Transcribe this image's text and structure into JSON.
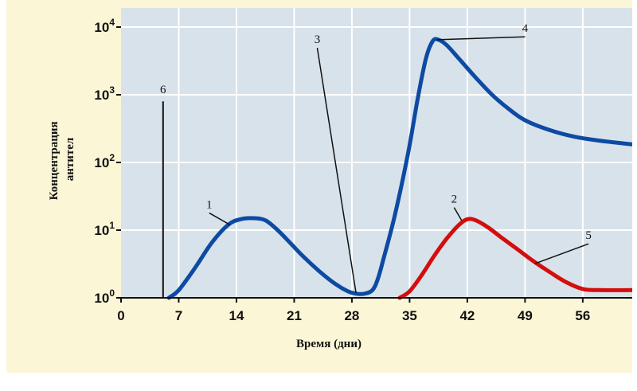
{
  "chart_data": {
    "type": "line",
    "xlabel": "Время (дни)",
    "ylabel": [
      "Концентрация",
      "антител"
    ],
    "xlim": [
      0,
      62
    ],
    "x_ticks": [
      0,
      7,
      14,
      21,
      28,
      35,
      42,
      49,
      56
    ],
    "ylim": [
      1,
      10000
    ],
    "yscale": "log",
    "y_ticks": [
      {
        "base": "10",
        "exp": "0",
        "value": 1
      },
      {
        "base": "10",
        "exp": "1",
        "value": 10
      },
      {
        "base": "10",
        "exp": "2",
        "value": 100
      },
      {
        "base": "10",
        "exp": "3",
        "value": 1000
      },
      {
        "base": "10",
        "exp": "4",
        "value": 10000
      }
    ],
    "grid": true,
    "series": [
      {
        "color": "#0d4aa3",
        "points": [
          [
            5.8,
            1.0
          ],
          [
            7,
            1.3
          ],
          [
            9,
            2.8
          ],
          [
            11,
            6.5
          ],
          [
            13,
            12
          ],
          [
            14.5,
            14.5
          ],
          [
            16,
            15
          ],
          [
            17.5,
            14
          ],
          [
            19,
            10
          ],
          [
            20.5,
            6.5
          ],
          [
            22,
            4.2
          ],
          [
            24,
            2.5
          ],
          [
            26,
            1.6
          ],
          [
            27.5,
            1.25
          ],
          [
            28.5,
            1.15
          ],
          [
            29.5,
            1.15
          ],
          [
            30.5,
            1.3
          ],
          [
            31.2,
            2
          ],
          [
            32,
            4.5
          ],
          [
            33,
            13
          ],
          [
            34,
            45
          ],
          [
            35,
            180
          ],
          [
            36,
            900
          ],
          [
            37,
            3500
          ],
          [
            37.8,
            6200
          ],
          [
            38.5,
            6500
          ],
          [
            39.5,
            5400
          ],
          [
            41,
            3400
          ],
          [
            43,
            1800
          ],
          [
            45,
            1000
          ],
          [
            47,
            620
          ],
          [
            49,
            420
          ],
          [
            52,
            300
          ],
          [
            55,
            240
          ],
          [
            58,
            210
          ],
          [
            62,
            185
          ]
        ]
      },
      {
        "color": "#d40d0d",
        "points": [
          [
            33.8,
            1.0
          ],
          [
            35,
            1.25
          ],
          [
            36.5,
            2.2
          ],
          [
            38,
            4.2
          ],
          [
            39.5,
            7.5
          ],
          [
            41,
            12
          ],
          [
            42,
            14.5
          ],
          [
            43,
            14
          ],
          [
            44.5,
            11
          ],
          [
            46,
            8
          ],
          [
            48,
            5.3
          ],
          [
            50,
            3.5
          ],
          [
            52,
            2.4
          ],
          [
            54,
            1.7
          ],
          [
            56,
            1.35
          ],
          [
            58,
            1.3
          ],
          [
            62,
            1.3
          ]
        ]
      }
    ],
    "annotations": [
      {
        "label": "1",
        "text_at": [
          10.7,
          20
        ],
        "to": [
          13.2,
          12
        ]
      },
      {
        "label": "2",
        "text_at": [
          40.4,
          24
        ],
        "to": [
          41.3,
          14
        ]
      },
      {
        "label": "3",
        "text_at": [
          23.8,
          5500
        ],
        "to": [
          28.5,
          1.18
        ]
      },
      {
        "label": "4",
        "text_at": [
          49,
          8000
        ],
        "to": [
          38.3,
          6500
        ]
      },
      {
        "label": "5",
        "text_at": [
          56.7,
          7
        ],
        "to": [
          50.2,
          3.2
        ]
      },
      {
        "label": "6",
        "text_at": [
          5.1,
          1000
        ],
        "to": [
          5.1,
          1.0
        ]
      }
    ],
    "event_lines": [
      {
        "x": 5.1,
        "y_top": 800,
        "y_bottom": 1.0
      }
    ],
    "background": "#d8e2ea",
    "frame_color": "#fbf6d6",
    "grid_color": "#ffffff"
  }
}
